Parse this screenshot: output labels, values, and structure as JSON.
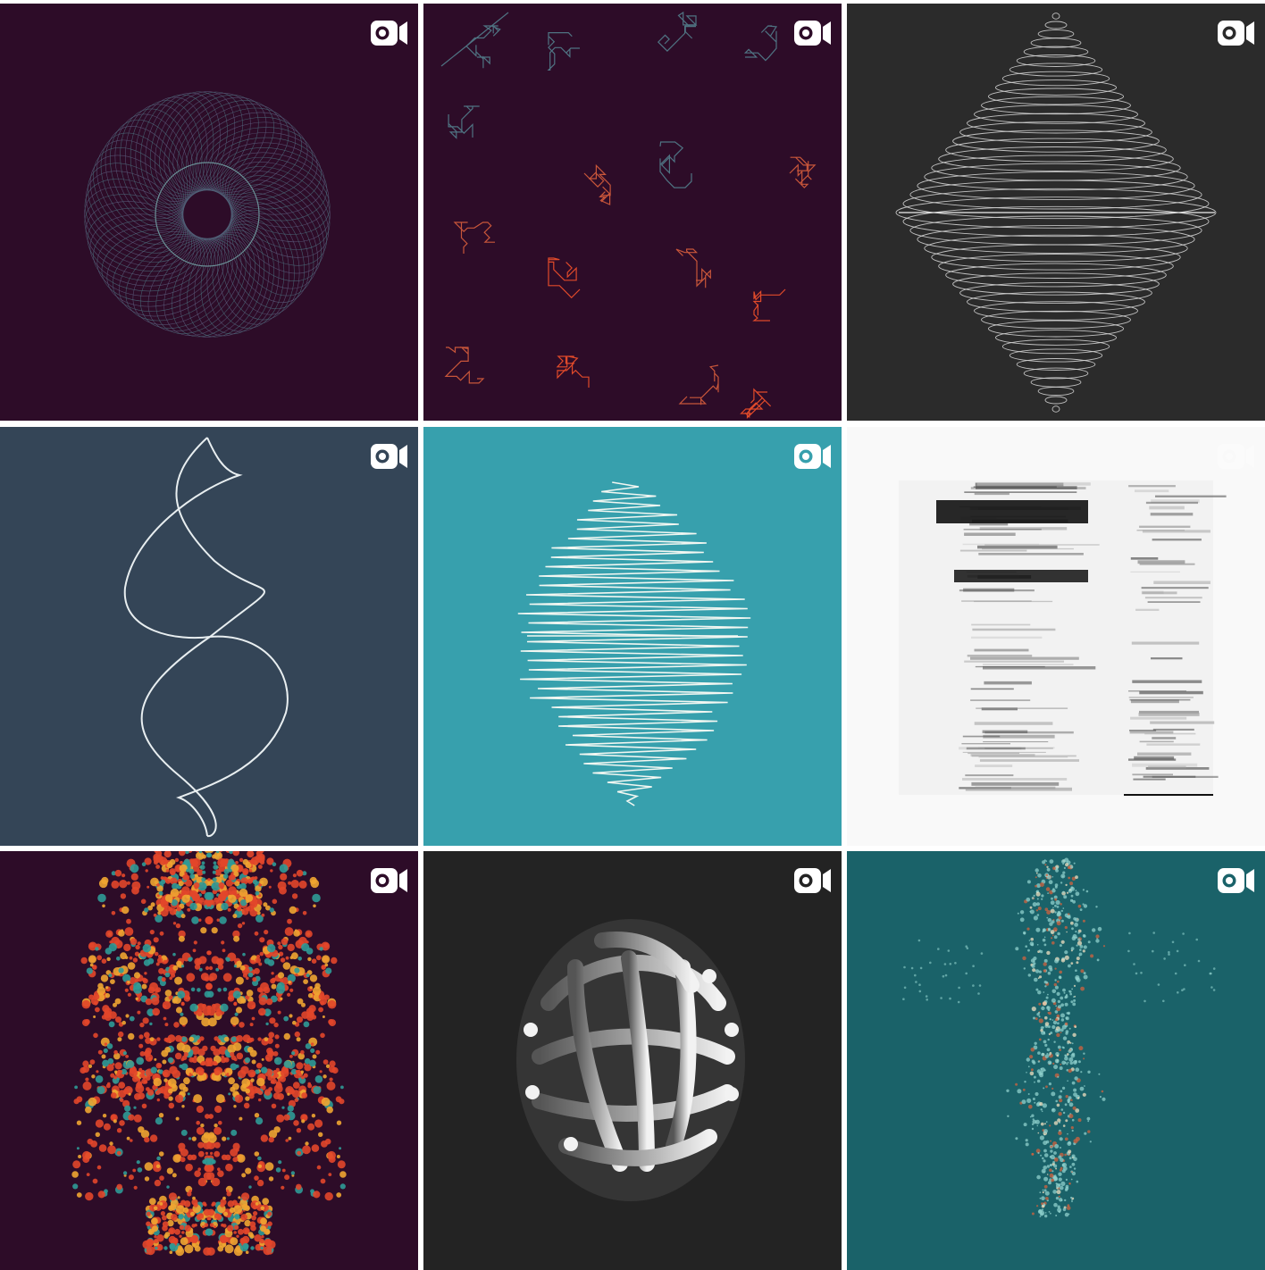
{
  "grid": {
    "tiles": [
      {
        "id": "spirograph-ring",
        "background": "#2d0c28",
        "media": "video",
        "icon": "video-camera-icon",
        "line_color": "#4f6f7a"
      },
      {
        "id": "random-walk-glyphs",
        "background": "#2d0c28",
        "media": "video",
        "icon": "video-camera-icon",
        "colors": [
          "#4f7382",
          "#c8563a",
          "#e04a2a"
        ]
      },
      {
        "id": "diamond-rings",
        "background": "#2b2b2b",
        "media": "video",
        "icon": "video-camera-icon",
        "line_color": "#d9d9d9"
      },
      {
        "id": "twisted-curve",
        "background": "#344557",
        "media": "video",
        "icon": "video-camera-icon",
        "line_color": "#e8eef0"
      },
      {
        "id": "zigzag-lens",
        "background": "#37a0ad",
        "media": "video",
        "icon": "video-camera-icon",
        "line_color": "#f2f7f2"
      },
      {
        "id": "glitch-scan",
        "background": "#f9f9f9",
        "media": "video",
        "icon": "video-camera-icon",
        "line_color": "#111111"
      },
      {
        "id": "fractal-mirror",
        "background": "#2d0c28",
        "media": "video",
        "icon": "video-camera-icon",
        "colors": [
          "#e2462a",
          "#f0a531",
          "#2f9a96"
        ]
      },
      {
        "id": "tube-sphere",
        "background": "#232323",
        "media": "video",
        "icon": "video-camera-icon",
        "colors": [
          "#3a3a3a",
          "#f2f2f2"
        ]
      },
      {
        "id": "particle-spine",
        "background": "#1a6269",
        "media": "video",
        "icon": "video-camera-icon",
        "colors": [
          "#8fd0cc",
          "#d2633f",
          "#f0e0c0"
        ]
      }
    ]
  }
}
